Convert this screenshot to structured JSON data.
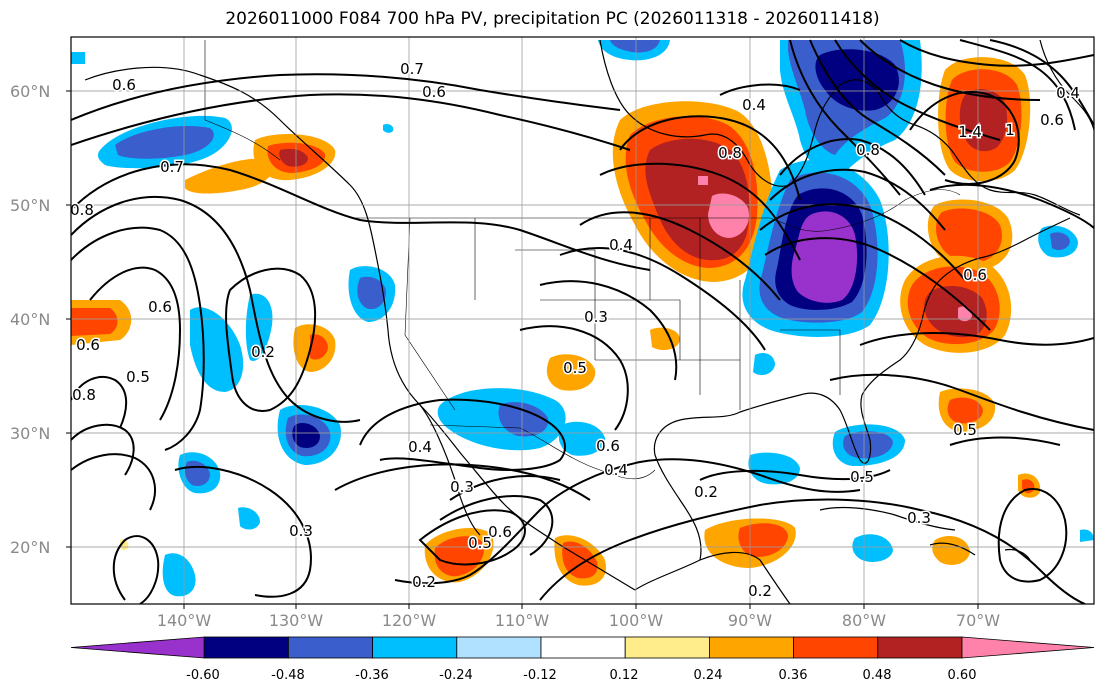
{
  "title": "2026011000 F084 700 hPa PV, precipitation PC (2026011318 - 2026011418)",
  "latitude_labels": [
    "60°N",
    "50°N",
    "40°N",
    "30°N",
    "20°N"
  ],
  "longitude_labels": [
    "140°W",
    "130°W",
    "120°W",
    "110°W",
    "100°W",
    "90°W",
    "80°W",
    "70°W"
  ],
  "colorbar": {
    "colors": [
      "#9932cc",
      "#000080",
      "#3a5fcd",
      "#00bfff",
      "#b0e2ff",
      "#ffffff",
      "#ffec8b",
      "#ffa500",
      "#ff4500",
      "#b22222",
      "#ff82ab"
    ],
    "tick_labels": [
      "-0.60",
      "-0.48",
      "-0.36",
      "-0.24",
      "-0.12",
      "0.12",
      "0.24",
      "0.36",
      "0.48",
      "0.60"
    ]
  },
  "contour_labels": [
    "0.6",
    "0.7",
    "0.6",
    "0.4",
    "0.8",
    "0.7",
    "0.8",
    "0.6",
    "0.5",
    "0.6",
    "0.8",
    "0.2",
    "0.4",
    "0.3",
    "0.3",
    "0.2",
    "0.6",
    "0.5",
    "0.3",
    "0.5",
    "0.4",
    "0.6",
    "0.4",
    "0.5",
    "0.2",
    "0.3",
    "0.2",
    "0.5",
    "0.8",
    "1.4",
    "1",
    "0.6",
    "0.4",
    "0.6"
  ]
}
